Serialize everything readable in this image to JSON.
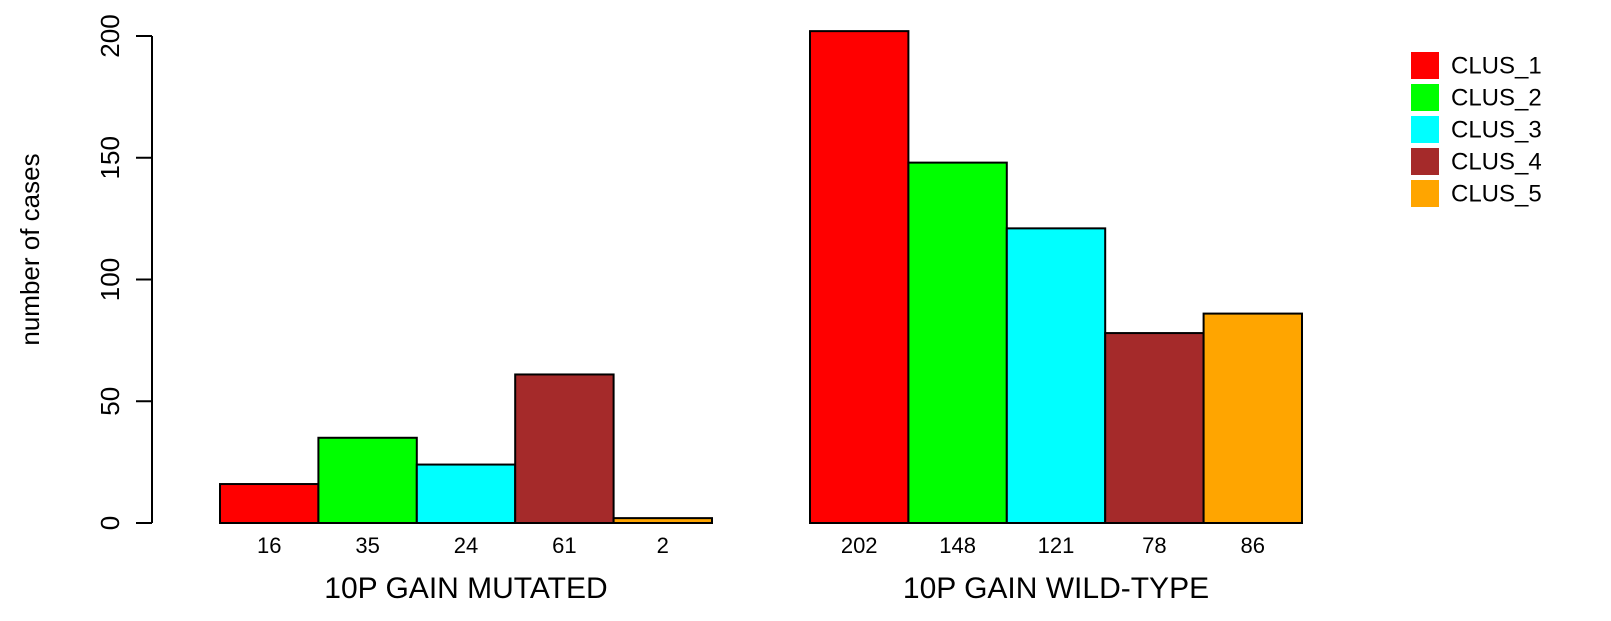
{
  "chart_data": {
    "type": "bar",
    "ylabel": "number of cases",
    "ylim": [
      0,
      200
    ],
    "yticks": [
      0,
      50,
      100,
      150,
      200
    ],
    "grid": false,
    "legend_position": "top-right",
    "series": [
      {
        "name": "CLUS_1",
        "color": "#FF0000"
      },
      {
        "name": "CLUS_2",
        "color": "#00FF00"
      },
      {
        "name": "CLUS_3",
        "color": "#00FFFF"
      },
      {
        "name": "CLUS_4",
        "color": "#A52A2A"
      },
      {
        "name": "CLUS_5",
        "color": "#FFA500"
      }
    ],
    "groups": [
      {
        "label": "10P GAIN MUTATED",
        "values": [
          16,
          35,
          24,
          61,
          2
        ]
      },
      {
        "label": "10P GAIN WILD-TYPE",
        "values": [
          202,
          148,
          121,
          78,
          86
        ]
      }
    ]
  }
}
